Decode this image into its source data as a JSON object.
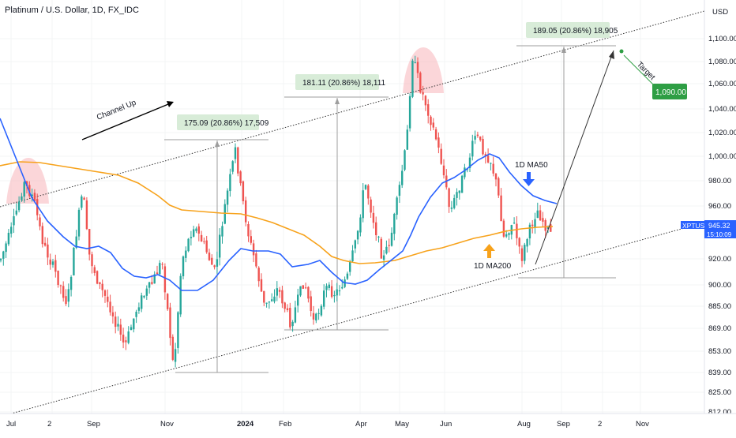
{
  "chart_data": {
    "type": "candlestick",
    "title": "Platinum / U.S. Dollar, 1D, FX_IDC",
    "currency_label": "USD",
    "symbol_badge": "XPTUSD",
    "last_price": "945.32",
    "countdown": "15:10:09",
    "y_axis_ticks": [
      "1,100.00",
      "1,080.00",
      "1,060.00",
      "1,040.00",
      "1,020.00",
      "1,000.00",
      "980.00",
      "960.00",
      "920.00",
      "900.00",
      "885.00",
      "869.00",
      "853.00",
      "839.00",
      "825.00",
      "812.00"
    ],
    "x_axis_ticks": [
      {
        "label": "Jul",
        "bold": false
      },
      {
        "label": "2",
        "bold": false
      },
      {
        "label": "Sep",
        "bold": false
      },
      {
        "label": "Nov",
        "bold": false
      },
      {
        "label": "2024",
        "bold": true
      },
      {
        "label": "Feb",
        "bold": false
      },
      {
        "label": "Apr",
        "bold": false
      },
      {
        "label": "May",
        "bold": false
      },
      {
        "label": "Jun",
        "bold": false
      },
      {
        "label": "Aug",
        "bold": false
      },
      {
        "label": "Sep",
        "bold": false
      },
      {
        "label": "2",
        "bold": false
      },
      {
        "label": "Nov",
        "bold": false
      }
    ],
    "colors": {
      "up": "#26a69a",
      "down": "#ef5350",
      "ma50": "#2962ff",
      "ma200": "#f7a21b",
      "target": "#2e9e44",
      "badge": "#2962ff"
    },
    "ma50_label": "1D MA50",
    "ma200_label": "1D MA200",
    "channel_label": "Channel Up",
    "target_label": "Target",
    "target_value": "1,090.00",
    "measurements": [
      "175.09 (20.86%) 17,509",
      "181.11 (20.86%) 18,111",
      "189.05 (20.86%) 18,905"
    ]
  }
}
